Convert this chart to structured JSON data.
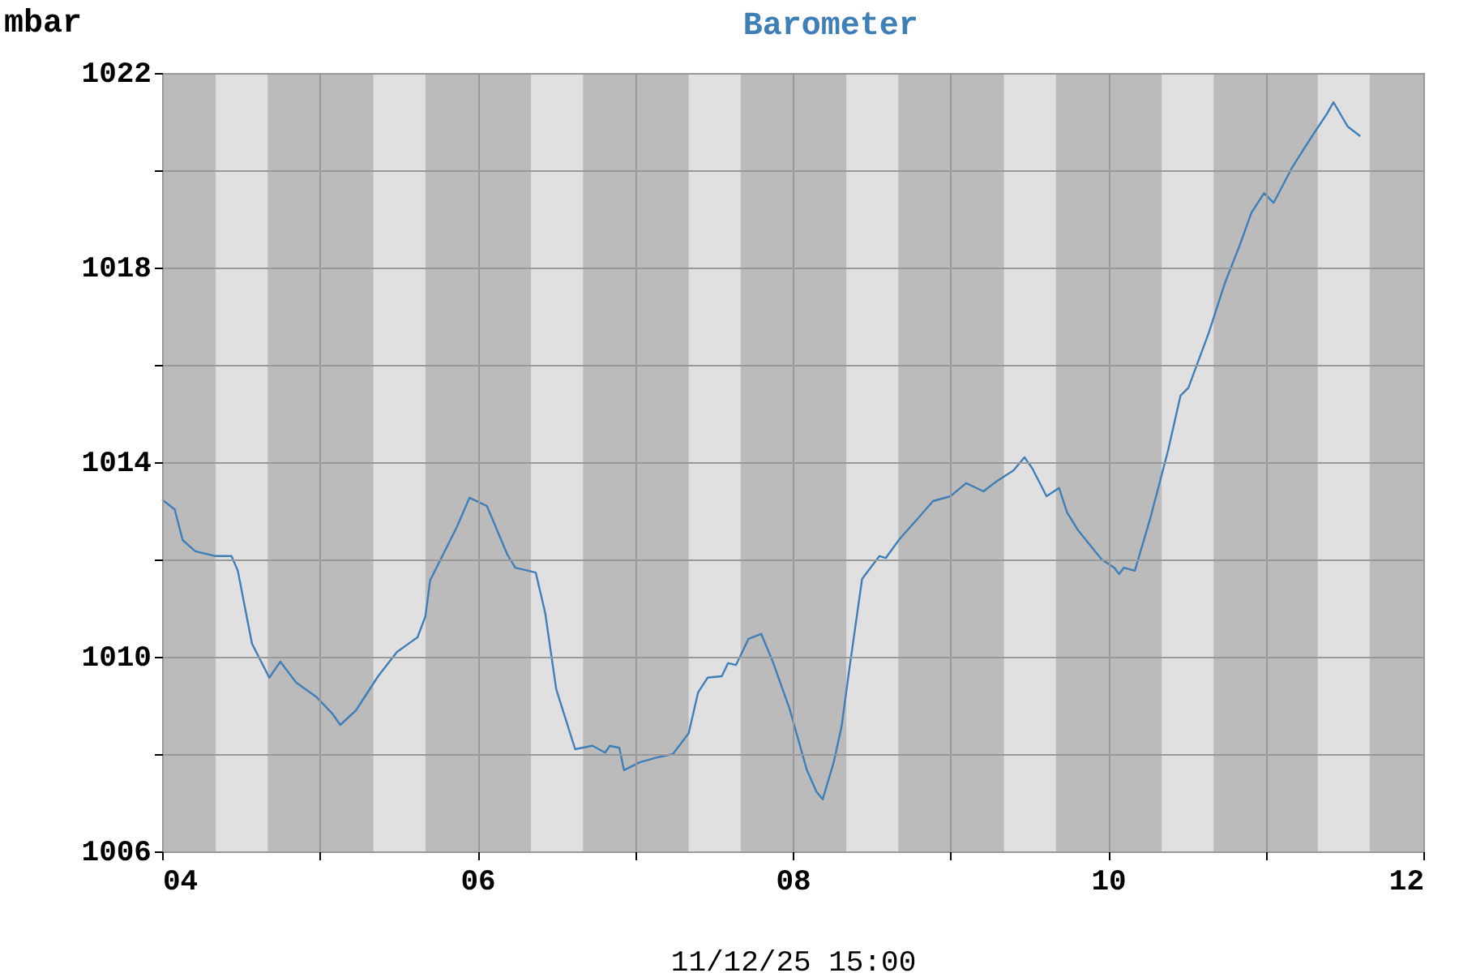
{
  "chart_data": {
    "type": "line",
    "title": "Barometer",
    "xlabel": "11/12/25 15:00",
    "ylabel": "mbar",
    "x": [
      4.0,
      4.08,
      4.13,
      4.21,
      4.34,
      4.44,
      4.48,
      4.57,
      4.68,
      4.75,
      4.85,
      4.98,
      5.08,
      5.13,
      5.23,
      5.37,
      5.49,
      5.62,
      5.67,
      5.7,
      5.87,
      5.95,
      6.06,
      6.19,
      6.24,
      6.37,
      6.43,
      6.5,
      6.62,
      6.73,
      6.81,
      6.84,
      6.9,
      6.93,
      7.03,
      7.14,
      7.24,
      7.34,
      7.4,
      7.46,
      7.55,
      7.59,
      7.64,
      7.72,
      7.8,
      7.87,
      7.98,
      8.09,
      8.15,
      8.19,
      8.26,
      8.31,
      8.36,
      8.44,
      8.55,
      8.59,
      8.68,
      8.79,
      8.89,
      9.0,
      9.1,
      9.21,
      9.29,
      9.4,
      9.47,
      9.52,
      9.61,
      9.69,
      9.74,
      9.81,
      9.96,
      10.04,
      10.07,
      10.1,
      10.17,
      10.27,
      10.38,
      10.46,
      10.51,
      10.64,
      10.74,
      10.84,
      10.91,
      10.99,
      11.05,
      11.17,
      11.28,
      11.39,
      11.43,
      11.52,
      11.6
    ],
    "series": [
      {
        "color": "#3f7fb8",
        "values": [
          1013.23,
          1013.03,
          1012.4,
          1012.17,
          1012.07,
          1012.07,
          1011.77,
          1010.27,
          1009.57,
          1009.9,
          1009.47,
          1009.17,
          1008.83,
          1008.6,
          1008.9,
          1009.6,
          1010.1,
          1010.4,
          1010.83,
          1011.57,
          1012.67,
          1013.27,
          1013.1,
          1012.1,
          1011.83,
          1011.73,
          1010.9,
          1009.33,
          1008.1,
          1008.17,
          1008.03,
          1008.17,
          1008.13,
          1007.67,
          1007.83,
          1007.93,
          1008.0,
          1008.43,
          1009.27,
          1009.57,
          1009.6,
          1009.87,
          1009.83,
          1010.37,
          1010.47,
          1009.93,
          1008.93,
          1007.67,
          1007.23,
          1007.07,
          1007.83,
          1008.57,
          1009.77,
          1011.6,
          1012.07,
          1012.03,
          1012.43,
          1012.83,
          1013.2,
          1013.3,
          1013.57,
          1013.4,
          1013.6,
          1013.83,
          1014.1,
          1013.87,
          1013.3,
          1013.47,
          1012.97,
          1012.6,
          1012.0,
          1011.83,
          1011.7,
          1011.83,
          1011.77,
          1012.87,
          1014.23,
          1015.37,
          1015.53,
          1016.67,
          1017.67,
          1018.5,
          1019.13,
          1019.53,
          1019.33,
          1020.07,
          1020.63,
          1021.17,
          1021.4,
          1020.9,
          1020.7
        ]
      }
    ],
    "xlim": [
      4,
      12
    ],
    "xticks": [
      {
        "value": 4,
        "label": "04"
      },
      {
        "value": 5,
        "label": null
      },
      {
        "value": 6,
        "label": "06"
      },
      {
        "value": 7,
        "label": null
      },
      {
        "value": 8,
        "label": "08"
      },
      {
        "value": 9,
        "label": null
      },
      {
        "value": 10,
        "label": "10"
      },
      {
        "value": 11,
        "label": null
      },
      {
        "value": 12,
        "label": "12"
      }
    ],
    "ylim": [
      1006,
      1022
    ],
    "yticks": [
      1006,
      {
        "value": 1008,
        "label": null
      },
      1010,
      {
        "value": 1012,
        "label": null
      },
      1014,
      {
        "value": 1016,
        "label": null
      },
      1018,
      {
        "value": 1020,
        "label": null
      },
      1022
    ],
    "bands": [
      {
        "axis": "x",
        "from": 4.34,
        "to": 4.67,
        "color": "#e0e0e0"
      },
      {
        "axis": "x",
        "from": 5.34,
        "to": 5.67,
        "color": "#e0e0e0"
      },
      {
        "axis": "x",
        "from": 6.34,
        "to": 6.67,
        "color": "#e0e0e0"
      },
      {
        "axis": "x",
        "from": 7.34,
        "to": 7.67,
        "color": "#e0e0e0"
      },
      {
        "axis": "x",
        "from": 8.34,
        "to": 8.67,
        "color": "#e0e0e0"
      },
      {
        "axis": "x",
        "from": 9.34,
        "to": 9.67,
        "color": "#e0e0e0"
      },
      {
        "axis": "x",
        "from": 10.34,
        "to": 10.67,
        "color": "#e0e0e0"
      },
      {
        "axis": "x",
        "from": 11.33,
        "to": 11.66,
        "color": "#e0e0e0"
      }
    ],
    "grid": true,
    "marker": "none",
    "line_style": "solid"
  }
}
